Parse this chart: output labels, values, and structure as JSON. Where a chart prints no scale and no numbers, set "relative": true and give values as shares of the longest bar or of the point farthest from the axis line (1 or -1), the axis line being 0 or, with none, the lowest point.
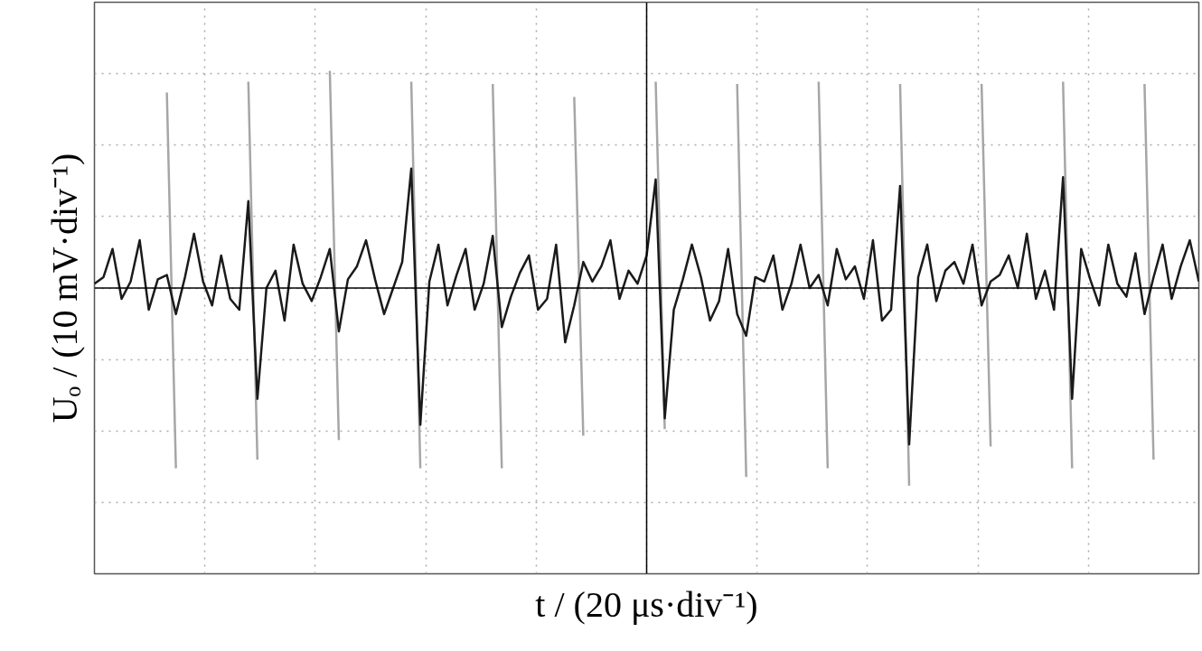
{
  "chart_data": {
    "type": "line",
    "relative": true,
    "xlabel": "t / (20 μs·div⁻¹)",
    "ylabel": "Uₒ / (10 mV·div⁻¹)",
    "grid": true,
    "tick_labels": false,
    "marker": "none",
    "line_style": "solid",
    "categories": [
      null,
      null,
      null,
      null,
      null,
      null,
      null,
      null,
      null,
      null,
      null,
      null,
      null,
      null,
      null,
      null,
      null,
      null,
      null,
      null,
      null,
      null,
      null,
      null,
      null,
      null,
      null,
      null,
      null,
      null,
      null,
      null,
      null,
      null,
      null,
      null,
      null,
      null,
      null,
      null,
      null,
      null,
      null,
      null,
      null,
      null,
      null,
      null,
      null,
      null,
      null,
      null,
      null,
      null,
      null,
      null,
      null,
      null,
      null,
      null,
      null,
      null,
      null,
      null,
      null,
      null,
      null,
      null,
      null,
      null,
      null,
      null,
      null,
      null,
      null,
      null,
      null,
      null,
      null,
      null,
      null,
      null,
      null,
      null,
      null,
      null,
      null,
      null,
      null,
      null,
      null,
      null,
      null,
      null,
      null,
      null,
      null,
      null,
      null,
      null,
      null,
      null,
      null,
      null,
      null,
      null,
      null,
      null,
      null,
      null,
      null,
      null,
      null,
      null,
      null,
      null,
      null,
      null,
      null,
      null,
      null,
      null,
      null
    ],
    "series": [
      {
        "color": "#a6a6a6",
        "values": [
          null,
          null,
          null,
          null,
          null,
          null,
          null,
          null,
          0.9,
          -0.83,
          null,
          null,
          null,
          null,
          null,
          null,
          null,
          0.95,
          -0.79,
          null,
          null,
          null,
          null,
          null,
          null,
          null,
          1.0,
          -0.7,
          null,
          null,
          null,
          null,
          null,
          null,
          null,
          0.95,
          -0.83,
          null,
          null,
          null,
          null,
          null,
          null,
          null,
          0.94,
          -0.83,
          null,
          null,
          null,
          null,
          null,
          null,
          null,
          0.88,
          -0.68,
          null,
          null,
          null,
          null,
          null,
          null,
          null,
          0.95,
          -0.65,
          null,
          null,
          null,
          null,
          null,
          null,
          null,
          0.94,
          -0.87,
          null,
          null,
          null,
          null,
          null,
          null,
          null,
          0.95,
          -0.83,
          null,
          null,
          null,
          null,
          null,
          null,
          null,
          0.94,
          -0.91,
          null,
          null,
          null,
          null,
          null,
          null,
          null,
          0.94,
          -0.73,
          null,
          null,
          null,
          null,
          null,
          null,
          null,
          0.95,
          -0.83,
          null,
          null,
          null,
          null,
          null,
          null,
          null,
          0.94,
          -0.79,
          null,
          null,
          null,
          null,
          null
        ]
      },
      {
        "color": "#1a1a1a",
        "values": [
          0.02,
          0.05,
          0.18,
          -0.05,
          0.03,
          0.22,
          -0.1,
          0.04,
          0.06,
          -0.12,
          0.05,
          0.25,
          0.03,
          -0.08,
          0.15,
          -0.05,
          -0.1,
          0.4,
          -0.51,
          0.0,
          0.08,
          -0.15,
          0.2,
          0.02,
          -0.06,
          0.05,
          0.18,
          -0.2,
          0.04,
          0.1,
          0.22,
          0.04,
          -0.12,
          0.0,
          0.12,
          0.55,
          -0.63,
          0.03,
          0.2,
          -0.08,
          0.06,
          0.18,
          -0.1,
          0.02,
          0.24,
          -0.18,
          -0.04,
          0.07,
          0.15,
          -0.1,
          -0.05,
          0.2,
          -0.25,
          -0.08,
          0.12,
          0.03,
          0.1,
          0.22,
          -0.05,
          0.08,
          0.02,
          0.15,
          0.5,
          -0.6,
          -0.1,
          0.04,
          0.2,
          0.05,
          -0.15,
          -0.06,
          0.18,
          -0.12,
          -0.22,
          0.05,
          0.03,
          0.15,
          -0.1,
          0.02,
          0.2,
          0.0,
          0.06,
          -0.08,
          0.18,
          0.04,
          0.1,
          -0.05,
          0.22,
          -0.15,
          -0.1,
          0.47,
          -0.72,
          0.05,
          0.2,
          -0.06,
          0.08,
          0.12,
          0.02,
          0.2,
          -0.08,
          0.03,
          0.06,
          0.15,
          0.0,
          0.25,
          -0.05,
          0.08,
          -0.1,
          0.51,
          -0.51,
          0.18,
          0.04,
          -0.08,
          0.2,
          0.02,
          -0.04,
          0.16,
          -0.12,
          0.05,
          0.2,
          -0.05,
          0.1,
          0.22,
          0.03
        ]
      }
    ]
  }
}
